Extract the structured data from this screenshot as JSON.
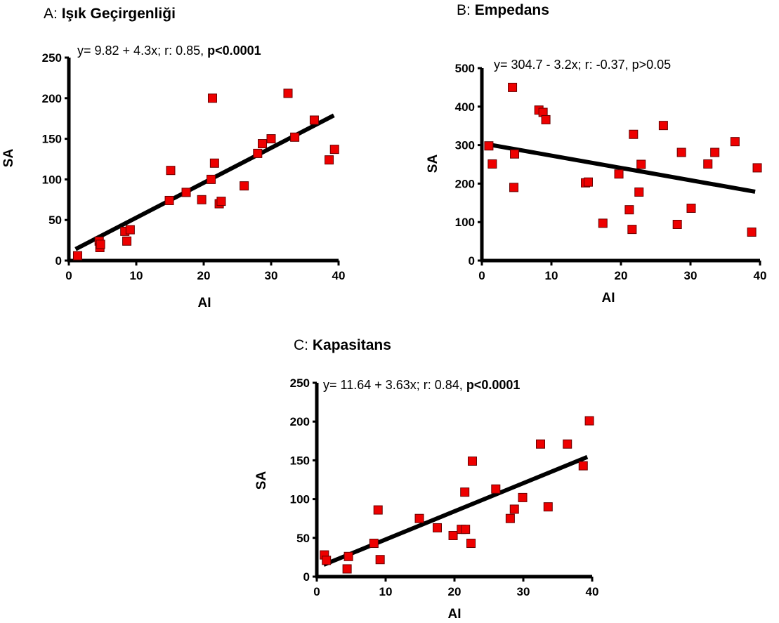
{
  "colors": {
    "marker_fill": "#ee0000",
    "marker_stroke": "#660000",
    "line": "#000000",
    "axis": "#000000"
  },
  "chart_data": [
    {
      "type": "scatter",
      "panel_prefix": "A: ",
      "title": "Işık Geçirgenliği",
      "equation": "y= 9.82 + 4.3x; r: 0.85, ",
      "pvalue": "p<0.0001",
      "pvalue_bold": true,
      "xlabel": "AI",
      "ylabel": "SA",
      "xlim": [
        0,
        40
      ],
      "ylim": [
        0,
        250
      ],
      "xticks": [
        0,
        10,
        20,
        30,
        40
      ],
      "yticks": [
        0,
        50,
        100,
        150,
        200,
        250
      ],
      "regression": {
        "intercept": 9.82,
        "slope": 4.3,
        "x_range": [
          1,
          39.3
        ]
      },
      "x": [
        1.3,
        4.5,
        4.6,
        4.7,
        8.3,
        8.6,
        9.1,
        14.9,
        15.1,
        17.4,
        19.7,
        21.1,
        21.3,
        21.6,
        22.3,
        22.6,
        26.0,
        28.0,
        28.7,
        30.0,
        32.5,
        33.5,
        36.4,
        38.6,
        39.4
      ],
      "y": [
        6,
        24,
        16,
        20,
        36,
        24,
        38,
        74,
        111,
        84,
        75,
        100,
        200,
        120,
        70,
        73,
        92,
        132,
        144,
        150,
        206,
        152,
        173,
        124,
        137
      ]
    },
    {
      "type": "scatter",
      "panel_prefix": "B: ",
      "title": "Empedans",
      "equation": "y= 304.7 - 3.2x; r: -0.37, p>0.05",
      "pvalue": "",
      "pvalue_bold": false,
      "xlabel": "AI",
      "ylabel": "SA",
      "xlim": [
        0,
        40
      ],
      "ylim": [
        0,
        500
      ],
      "xticks": [
        0,
        10,
        20,
        30,
        40
      ],
      "yticks": [
        0,
        100,
        200,
        300,
        400,
        500
      ],
      "regression": {
        "intercept": 304.7,
        "slope": -3.2,
        "x_range": [
          1,
          39.3
        ]
      },
      "x": [
        1.0,
        1.5,
        4.4,
        4.6,
        4.7,
        8.2,
        8.8,
        9.2,
        14.9,
        15.3,
        17.4,
        19.7,
        21.2,
        21.6,
        21.8,
        22.6,
        22.9,
        26.1,
        28.1,
        28.7,
        30.1,
        32.5,
        33.5,
        36.4,
        38.8,
        39.6
      ],
      "y": [
        298,
        251,
        450,
        190,
        277,
        391,
        385,
        366,
        202,
        204,
        97,
        225,
        132,
        81,
        328,
        178,
        250,
        351,
        94,
        281,
        136,
        251,
        281,
        309,
        74,
        241
      ]
    },
    {
      "type": "scatter",
      "panel_prefix": "C: ",
      "title": "Kapasitans",
      "equation": "y= 11.64 + 3.63x; r: 0.84, ",
      "pvalue": "p<0.0001",
      "pvalue_bold": true,
      "xlabel": "AI",
      "ylabel": "SA",
      "xlim": [
        0,
        40
      ],
      "ylim": [
        0,
        250
      ],
      "xticks": [
        0,
        10,
        20,
        30,
        40
      ],
      "yticks": [
        0,
        50,
        100,
        150,
        200,
        250
      ],
      "regression": {
        "intercept": 11.64,
        "slope": 3.63,
        "x_range": [
          1,
          39.3
        ]
      },
      "x": [
        1.1,
        1.4,
        4.4,
        4.6,
        8.3,
        8.9,
        9.2,
        14.9,
        17.5,
        19.8,
        21.0,
        21.5,
        21.6,
        22.4,
        22.6,
        26.0,
        28.1,
        28.7,
        29.9,
        32.5,
        33.6,
        36.4,
        38.7,
        39.6
      ],
      "y": [
        28,
        21,
        10,
        26,
        43,
        86,
        22,
        75,
        63,
        53,
        61,
        109,
        61,
        43,
        149,
        113,
        75,
        87,
        102,
        171,
        90,
        171,
        143,
        201
      ]
    }
  ]
}
